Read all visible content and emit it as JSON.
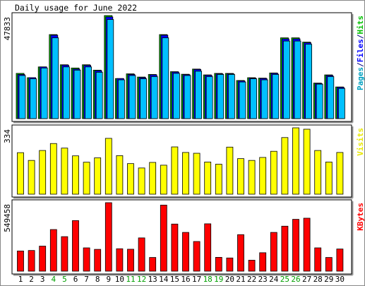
{
  "chart_data": {
    "type": "bar",
    "title": "Daily usage for June 2022",
    "days": [
      "1",
      "2",
      "3",
      "4",
      "5",
      "6",
      "7",
      "8",
      "9",
      "10",
      "11",
      "12",
      "13",
      "14",
      "15",
      "16",
      "17",
      "18",
      "19",
      "20",
      "21",
      "22",
      "23",
      "24",
      "25",
      "26",
      "27",
      "28",
      "29",
      "30"
    ],
    "weekend_days": [
      "4",
      "5",
      "11",
      "12",
      "18",
      "19",
      "25",
      "26"
    ],
    "panels": [
      {
        "key": "hits",
        "scale_label": "47833",
        "ymax": 47833,
        "legend": [
          {
            "text": "Pages",
            "color": "#00a0c0"
          },
          {
            "text": "/",
            "color": "#000080"
          },
          {
            "text": "Files",
            "color": "#0000ff"
          },
          {
            "text": "/",
            "color": "#000080"
          },
          {
            "text": "Hits",
            "color": "#00c000"
          }
        ],
        "series": [
          {
            "name": "Hits",
            "color": "#00c000",
            "values": [
              21000,
              19000,
              24000,
              39000,
              25000,
              23500,
              25000,
              22500,
              47833,
              18600,
              20800,
              19300,
              20500,
              39000,
              21800,
              20600,
              23000,
              20300,
              21000,
              21000,
              17700,
              19000,
              18800,
              21200,
              37500,
              37500,
              35500,
              16500,
              20300,
              14700
            ]
          },
          {
            "name": "Files",
            "color": "#0000ff",
            "values": [
              20500,
              19000,
              24000,
              38700,
              24800,
              23000,
              24700,
              22200,
              47200,
              18600,
              20500,
              19000,
              20300,
              38700,
              21600,
              20400,
              22800,
              20100,
              20800,
              20800,
              17500,
              18800,
              18600,
              21000,
              37000,
              37000,
              35200,
              16300,
              20000,
              14500
            ]
          },
          {
            "name": "Pages",
            "color": "#00c0ff",
            "values": [
              20000,
              18500,
              23500,
              37500,
              24000,
              22500,
              24000,
              21500,
              46000,
              18000,
              20000,
              18500,
              19500,
              37500,
              21000,
              20000,
              22000,
              19500,
              20500,
              20500,
              17000,
              18500,
              18000,
              20500,
              36000,
              36000,
              34500,
              16000,
              19500,
              14000
            ]
          }
        ]
      },
      {
        "key": "visits",
        "scale_label": "334",
        "ymax": 334,
        "legend": [
          {
            "text": "Visits",
            "color": "#e8e800"
          }
        ],
        "series": [
          {
            "name": "Visits",
            "color": "#ffff00",
            "values": [
              209,
              170,
              220,
              255,
              232,
              193,
              161,
              183,
              281,
              194,
              154,
              132,
              160,
              146,
              238,
              210,
              206,
              162,
              151,
              237,
              179,
              170,
              185,
              216,
              285,
              334,
              327,
              220,
              162,
              210
            ]
          }
        ]
      },
      {
        "key": "kbytes",
        "scale_label": "549458",
        "ymax": 549458,
        "legend": [
          {
            "text": "KBytes",
            "color": "#ff0000"
          }
        ],
        "series": [
          {
            "name": "KBytes",
            "color": "#ff0000",
            "values": [
              162000,
              166000,
              201000,
              334000,
              277000,
              406000,
              187000,
              175000,
              549458,
              180000,
              176000,
              267000,
              110000,
              530000,
              378000,
              311000,
              238000,
              380000,
              111000,
              106000,
              293000,
              88000,
              148000,
              311000,
              361000,
              416000,
              425000,
              187000,
              110000,
              178000
            ]
          }
        ]
      }
    ]
  }
}
